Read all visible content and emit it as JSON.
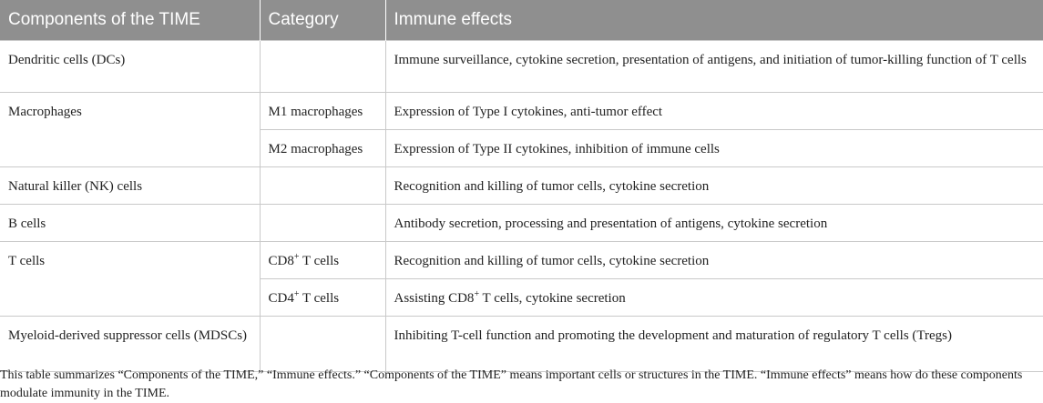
{
  "table": {
    "headers": [
      "Components of the TIME",
      "Category",
      "Immune effects"
    ],
    "rows": {
      "dc": {
        "component": "Dendritic cells (DCs)",
        "effect": "Immune surveillance, cytokine secretion, presentation of antigens, and initiation of tumor-killing function of T cells"
      },
      "macrophages": {
        "component": "Macrophages"
      },
      "m1": {
        "category": "M1 macrophages",
        "effect": "Expression of Type I cytokines, anti-tumor effect"
      },
      "m2": {
        "category": "M2 macrophages",
        "effect": "Expression of Type II cytokines, inhibition of immune cells"
      },
      "nk": {
        "component": "Natural killer (NK) cells",
        "effect": "Recognition and killing of tumor cells, cytokine secretion"
      },
      "b": {
        "component": "B cells",
        "effect": "Antibody secretion, processing and presentation of antigens, cytokine secretion"
      },
      "t": {
        "component": "T cells"
      },
      "cd8": {
        "category_prefix": "CD8",
        "category_sup": "+",
        "category_suffix": " T cells",
        "effect": "Recognition and killing of tumor cells, cytokine secretion"
      },
      "cd4": {
        "category_prefix": "CD4",
        "category_sup": "+",
        "category_suffix": " T cells",
        "effect_prefix": "Assisting CD8",
        "effect_sup": "+",
        "effect_suffix": " T cells, cytokine secretion"
      },
      "mdsc": {
        "component": "Myeloid-derived suppressor cells (MDSCs)",
        "effect": "Inhibiting T-cell function and promoting the development and maturation of regulatory T cells (Tregs)"
      }
    }
  },
  "caption": "This table summarizes “Components of the TIME,” “Immune effects.” “Components of the TIME” means important cells or structures in the TIME. “Immune effects” means how do these components modulate immunity in the TIME.",
  "colors": {
    "header_bg": "#8f8f8f",
    "header_text": "#ffffff",
    "border": "#c9c9c9"
  }
}
